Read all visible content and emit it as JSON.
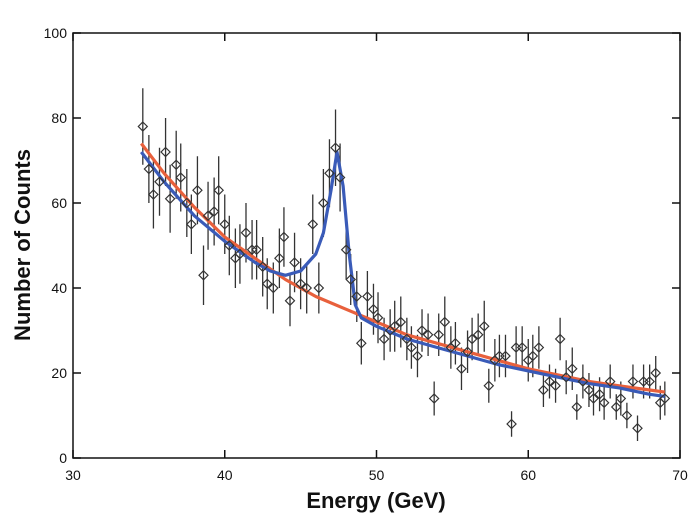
{
  "chart_data": {
    "type": "scatter",
    "x_label": "Energy (GeV)",
    "y_label": "Number of Counts",
    "xlim": [
      30,
      70
    ],
    "ylim": [
      0,
      100
    ],
    "xticks": [
      30,
      40,
      50,
      60,
      70
    ],
    "yticks": [
      0,
      20,
      40,
      60,
      80,
      100
    ],
    "points": {
      "color": "#333333",
      "x": [
        34.6,
        35.0,
        35.3,
        35.7,
        36.1,
        36.4,
        36.8,
        37.1,
        37.5,
        37.8,
        38.2,
        38.6,
        38.9,
        39.3,
        39.6,
        40.0,
        40.3,
        40.7,
        41.0,
        41.4,
        41.8,
        42.1,
        42.5,
        42.8,
        43.2,
        43.6,
        43.9,
        44.3,
        44.6,
        45.0,
        45.4,
        45.8,
        46.2,
        46.5,
        46.9,
        47.3,
        47.6,
        48.0,
        48.3,
        48.7,
        49.0,
        49.4,
        49.8,
        50.1,
        50.5,
        50.9,
        51.2,
        51.6,
        52.0,
        52.3,
        52.7,
        53.0,
        53.4,
        53.8,
        54.1,
        54.5,
        54.9,
        55.2,
        55.6,
        56.0,
        56.3,
        56.7,
        57.1,
        57.4,
        57.8,
        58.1,
        58.5,
        58.9,
        59.2,
        59.6,
        60.0,
        60.3,
        60.7,
        61.0,
        61.4,
        61.8,
        62.1,
        62.5,
        62.9,
        63.2,
        63.6,
        64.0,
        64.3,
        64.7,
        65.0,
        65.4,
        65.8,
        66.1,
        66.5,
        66.9,
        67.2,
        67.6,
        68.0,
        68.4,
        68.7,
        69.0
      ],
      "values": [
        78,
        68,
        62,
        65,
        72,
        61,
        69,
        66,
        60,
        55,
        63,
        43,
        57,
        58,
        63,
        55,
        50,
        47,
        48,
        53,
        49,
        49,
        45,
        41,
        40,
        47,
        52,
        37,
        46,
        41,
        40,
        55,
        40,
        60,
        67,
        73,
        66,
        49,
        42,
        38,
        27,
        38,
        35,
        33,
        28,
        30,
        31,
        32,
        28,
        26,
        24,
        30,
        29,
        14,
        29,
        32,
        26,
        27,
        21,
        25,
        28,
        29,
        31,
        17,
        23,
        24,
        24,
        8,
        26,
        26,
        23,
        24,
        26,
        16,
        18,
        17,
        28,
        19,
        21,
        12,
        18,
        16,
        14,
        15,
        13,
        18,
        12,
        14,
        10,
        18,
        7,
        18,
        18,
        20,
        13,
        14
      ],
      "errors": [
        9,
        8,
        8,
        8,
        8,
        8,
        8,
        8,
        8,
        7,
        8,
        7,
        8,
        8,
        8,
        7,
        7,
        7,
        7,
        7,
        7,
        7,
        7,
        6,
        6,
        7,
        7,
        6,
        7,
        6,
        6,
        7,
        6,
        8,
        8,
        9,
        8,
        7,
        6,
        6,
        5,
        6,
        6,
        6,
        5,
        5,
        6,
        6,
        5,
        5,
        5,
        5,
        5,
        4,
        5,
        6,
        5,
        5,
        5,
        5,
        5,
        5,
        6,
        4,
        5,
        5,
        5,
        3,
        5,
        5,
        5,
        5,
        5,
        4,
        4,
        4,
        5,
        4,
        5,
        3,
        4,
        4,
        4,
        4,
        4,
        4,
        3,
        4,
        3,
        4,
        3,
        4,
        4,
        4,
        4,
        4
      ]
    },
    "fits": [
      {
        "color": "#e8603c",
        "x": [
          34.5,
          36,
          38,
          40,
          42,
          44,
          46,
          48,
          50,
          52,
          54,
          56,
          58,
          60,
          62,
          64,
          66,
          68,
          69
        ],
        "values": [
          74,
          67,
          59,
          52,
          47,
          42,
          38,
          35,
          32,
          29,
          27,
          25,
          23,
          21,
          19.5,
          18,
          17,
          16,
          15.5
        ]
      },
      {
        "color": "#3a5bb8",
        "x": [
          34.5,
          36,
          38,
          40,
          42,
          43,
          44,
          45,
          46,
          46.5,
          47,
          47.4,
          47.8,
          48.2,
          48.6,
          49,
          50,
          52,
          54,
          56,
          58,
          60,
          62,
          64,
          66,
          68,
          69
        ],
        "values": [
          72,
          65,
          57,
          51,
          46,
          44,
          43,
          44,
          48,
          53,
          63,
          72,
          64,
          48,
          36,
          33,
          31,
          28,
          26,
          24,
          22,
          20.5,
          19,
          17.5,
          16.5,
          15,
          14.5
        ]
      }
    ]
  }
}
